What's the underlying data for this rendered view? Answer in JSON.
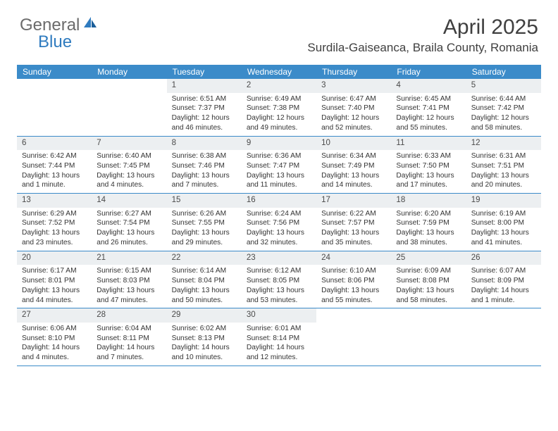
{
  "logo": {
    "general": "General",
    "blue": "Blue"
  },
  "title": {
    "month": "April 2025",
    "location": "Surdila-Gaiseanca, Braila County, Romania"
  },
  "colors": {
    "header_bg": "#3b8bc9",
    "header_text": "#ffffff",
    "daynum_bg": "#eceff1",
    "border": "#3b8bc9",
    "logo_gray": "#6b6b6b",
    "logo_blue": "#2f7bbf",
    "body_text": "#333333"
  },
  "day_names": [
    "Sunday",
    "Monday",
    "Tuesday",
    "Wednesday",
    "Thursday",
    "Friday",
    "Saturday"
  ],
  "weeks": [
    [
      {
        "n": "",
        "empty": true
      },
      {
        "n": "",
        "empty": true
      },
      {
        "n": "1",
        "sr": "Sunrise: 6:51 AM",
        "ss": "Sunset: 7:37 PM",
        "d1": "Daylight: 12 hours",
        "d2": "and 46 minutes."
      },
      {
        "n": "2",
        "sr": "Sunrise: 6:49 AM",
        "ss": "Sunset: 7:38 PM",
        "d1": "Daylight: 12 hours",
        "d2": "and 49 minutes."
      },
      {
        "n": "3",
        "sr": "Sunrise: 6:47 AM",
        "ss": "Sunset: 7:40 PM",
        "d1": "Daylight: 12 hours",
        "d2": "and 52 minutes."
      },
      {
        "n": "4",
        "sr": "Sunrise: 6:45 AM",
        "ss": "Sunset: 7:41 PM",
        "d1": "Daylight: 12 hours",
        "d2": "and 55 minutes."
      },
      {
        "n": "5",
        "sr": "Sunrise: 6:44 AM",
        "ss": "Sunset: 7:42 PM",
        "d1": "Daylight: 12 hours",
        "d2": "and 58 minutes."
      }
    ],
    [
      {
        "n": "6",
        "sr": "Sunrise: 6:42 AM",
        "ss": "Sunset: 7:44 PM",
        "d1": "Daylight: 13 hours",
        "d2": "and 1 minute."
      },
      {
        "n": "7",
        "sr": "Sunrise: 6:40 AM",
        "ss": "Sunset: 7:45 PM",
        "d1": "Daylight: 13 hours",
        "d2": "and 4 minutes."
      },
      {
        "n": "8",
        "sr": "Sunrise: 6:38 AM",
        "ss": "Sunset: 7:46 PM",
        "d1": "Daylight: 13 hours",
        "d2": "and 7 minutes."
      },
      {
        "n": "9",
        "sr": "Sunrise: 6:36 AM",
        "ss": "Sunset: 7:47 PM",
        "d1": "Daylight: 13 hours",
        "d2": "and 11 minutes."
      },
      {
        "n": "10",
        "sr": "Sunrise: 6:34 AM",
        "ss": "Sunset: 7:49 PM",
        "d1": "Daylight: 13 hours",
        "d2": "and 14 minutes."
      },
      {
        "n": "11",
        "sr": "Sunrise: 6:33 AM",
        "ss": "Sunset: 7:50 PM",
        "d1": "Daylight: 13 hours",
        "d2": "and 17 minutes."
      },
      {
        "n": "12",
        "sr": "Sunrise: 6:31 AM",
        "ss": "Sunset: 7:51 PM",
        "d1": "Daylight: 13 hours",
        "d2": "and 20 minutes."
      }
    ],
    [
      {
        "n": "13",
        "sr": "Sunrise: 6:29 AM",
        "ss": "Sunset: 7:52 PM",
        "d1": "Daylight: 13 hours",
        "d2": "and 23 minutes."
      },
      {
        "n": "14",
        "sr": "Sunrise: 6:27 AM",
        "ss": "Sunset: 7:54 PM",
        "d1": "Daylight: 13 hours",
        "d2": "and 26 minutes."
      },
      {
        "n": "15",
        "sr": "Sunrise: 6:26 AM",
        "ss": "Sunset: 7:55 PM",
        "d1": "Daylight: 13 hours",
        "d2": "and 29 minutes."
      },
      {
        "n": "16",
        "sr": "Sunrise: 6:24 AM",
        "ss": "Sunset: 7:56 PM",
        "d1": "Daylight: 13 hours",
        "d2": "and 32 minutes."
      },
      {
        "n": "17",
        "sr": "Sunrise: 6:22 AM",
        "ss": "Sunset: 7:57 PM",
        "d1": "Daylight: 13 hours",
        "d2": "and 35 minutes."
      },
      {
        "n": "18",
        "sr": "Sunrise: 6:20 AM",
        "ss": "Sunset: 7:59 PM",
        "d1": "Daylight: 13 hours",
        "d2": "and 38 minutes."
      },
      {
        "n": "19",
        "sr": "Sunrise: 6:19 AM",
        "ss": "Sunset: 8:00 PM",
        "d1": "Daylight: 13 hours",
        "d2": "and 41 minutes."
      }
    ],
    [
      {
        "n": "20",
        "sr": "Sunrise: 6:17 AM",
        "ss": "Sunset: 8:01 PM",
        "d1": "Daylight: 13 hours",
        "d2": "and 44 minutes."
      },
      {
        "n": "21",
        "sr": "Sunrise: 6:15 AM",
        "ss": "Sunset: 8:03 PM",
        "d1": "Daylight: 13 hours",
        "d2": "and 47 minutes."
      },
      {
        "n": "22",
        "sr": "Sunrise: 6:14 AM",
        "ss": "Sunset: 8:04 PM",
        "d1": "Daylight: 13 hours",
        "d2": "and 50 minutes."
      },
      {
        "n": "23",
        "sr": "Sunrise: 6:12 AM",
        "ss": "Sunset: 8:05 PM",
        "d1": "Daylight: 13 hours",
        "d2": "and 53 minutes."
      },
      {
        "n": "24",
        "sr": "Sunrise: 6:10 AM",
        "ss": "Sunset: 8:06 PM",
        "d1": "Daylight: 13 hours",
        "d2": "and 55 minutes."
      },
      {
        "n": "25",
        "sr": "Sunrise: 6:09 AM",
        "ss": "Sunset: 8:08 PM",
        "d1": "Daylight: 13 hours",
        "d2": "and 58 minutes."
      },
      {
        "n": "26",
        "sr": "Sunrise: 6:07 AM",
        "ss": "Sunset: 8:09 PM",
        "d1": "Daylight: 14 hours",
        "d2": "and 1 minute."
      }
    ],
    [
      {
        "n": "27",
        "sr": "Sunrise: 6:06 AM",
        "ss": "Sunset: 8:10 PM",
        "d1": "Daylight: 14 hours",
        "d2": "and 4 minutes."
      },
      {
        "n": "28",
        "sr": "Sunrise: 6:04 AM",
        "ss": "Sunset: 8:11 PM",
        "d1": "Daylight: 14 hours",
        "d2": "and 7 minutes."
      },
      {
        "n": "29",
        "sr": "Sunrise: 6:02 AM",
        "ss": "Sunset: 8:13 PM",
        "d1": "Daylight: 14 hours",
        "d2": "and 10 minutes."
      },
      {
        "n": "30",
        "sr": "Sunrise: 6:01 AM",
        "ss": "Sunset: 8:14 PM",
        "d1": "Daylight: 14 hours",
        "d2": "and 12 minutes."
      },
      {
        "n": "",
        "empty": true
      },
      {
        "n": "",
        "empty": true
      },
      {
        "n": "",
        "empty": true
      }
    ]
  ]
}
